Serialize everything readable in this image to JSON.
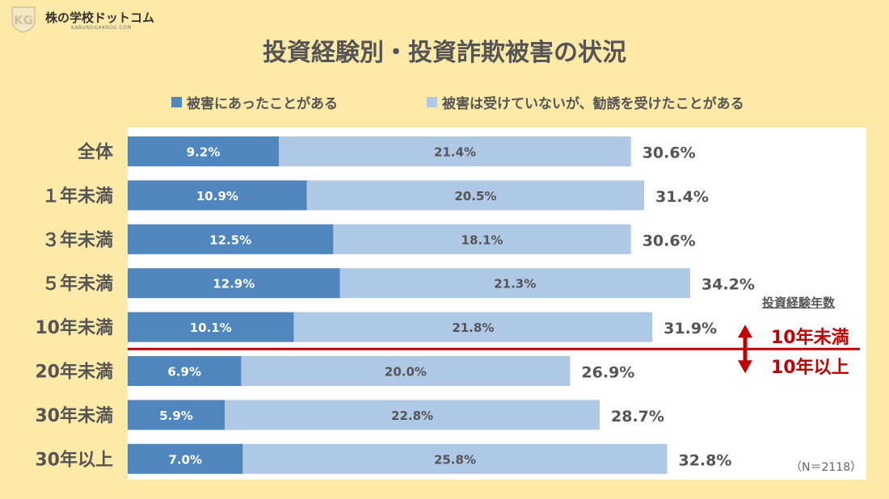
{
  "logo": {
    "name": "株の学校ドットコム",
    "sub": "KABUNOGAKKOU.COM"
  },
  "title": "投資経験別・投資詐欺被害の状況",
  "colors": {
    "damaged": "#4f86bd",
    "solicited": "#afc8e6",
    "divider": "#c00000",
    "background": "#fde9a8"
  },
  "chart_data": {
    "type": "bar",
    "orientation": "horizontal",
    "stacked": true,
    "categories": [
      "全体",
      "１年未満",
      "３年未満",
      "５年未満",
      "10年未満",
      "20年未満",
      "30年未満",
      "30年以上"
    ],
    "series": [
      {
        "name": "被害にあったことがある",
        "values": [
          9.2,
          10.9,
          12.5,
          12.9,
          10.1,
          6.9,
          5.9,
          7.0
        ],
        "labels": [
          "9.2%",
          "10.9%",
          "12.5%",
          "12.9%",
          "10.1%",
          "6.9%",
          "5.9%",
          "7.0%"
        ]
      },
      {
        "name": "被害は受けていないが、勧誘を受けたことがある",
        "values": [
          21.4,
          20.5,
          18.1,
          21.3,
          21.8,
          20.0,
          22.8,
          25.8
        ],
        "labels": [
          "21.4%",
          "20.5%",
          "18.1%",
          "21.3%",
          "21.8%",
          "20.0%",
          "22.8%",
          "25.8%"
        ]
      }
    ],
    "totals": [
      30.6,
      31.4,
      30.6,
      34.2,
      31.9,
      26.9,
      28.7,
      32.8
    ],
    "total_labels": [
      "30.6%",
      "31.4%",
      "30.6%",
      "34.2%",
      "31.9%",
      "26.9%",
      "28.7%",
      "32.8%"
    ],
    "xlim": [
      0,
      40
    ],
    "legend_position": "top",
    "grid": false
  },
  "annotation": {
    "heading": "投資経験年数",
    "upper": "10年未満",
    "lower": "10年以上"
  },
  "note": "（N＝2118）"
}
